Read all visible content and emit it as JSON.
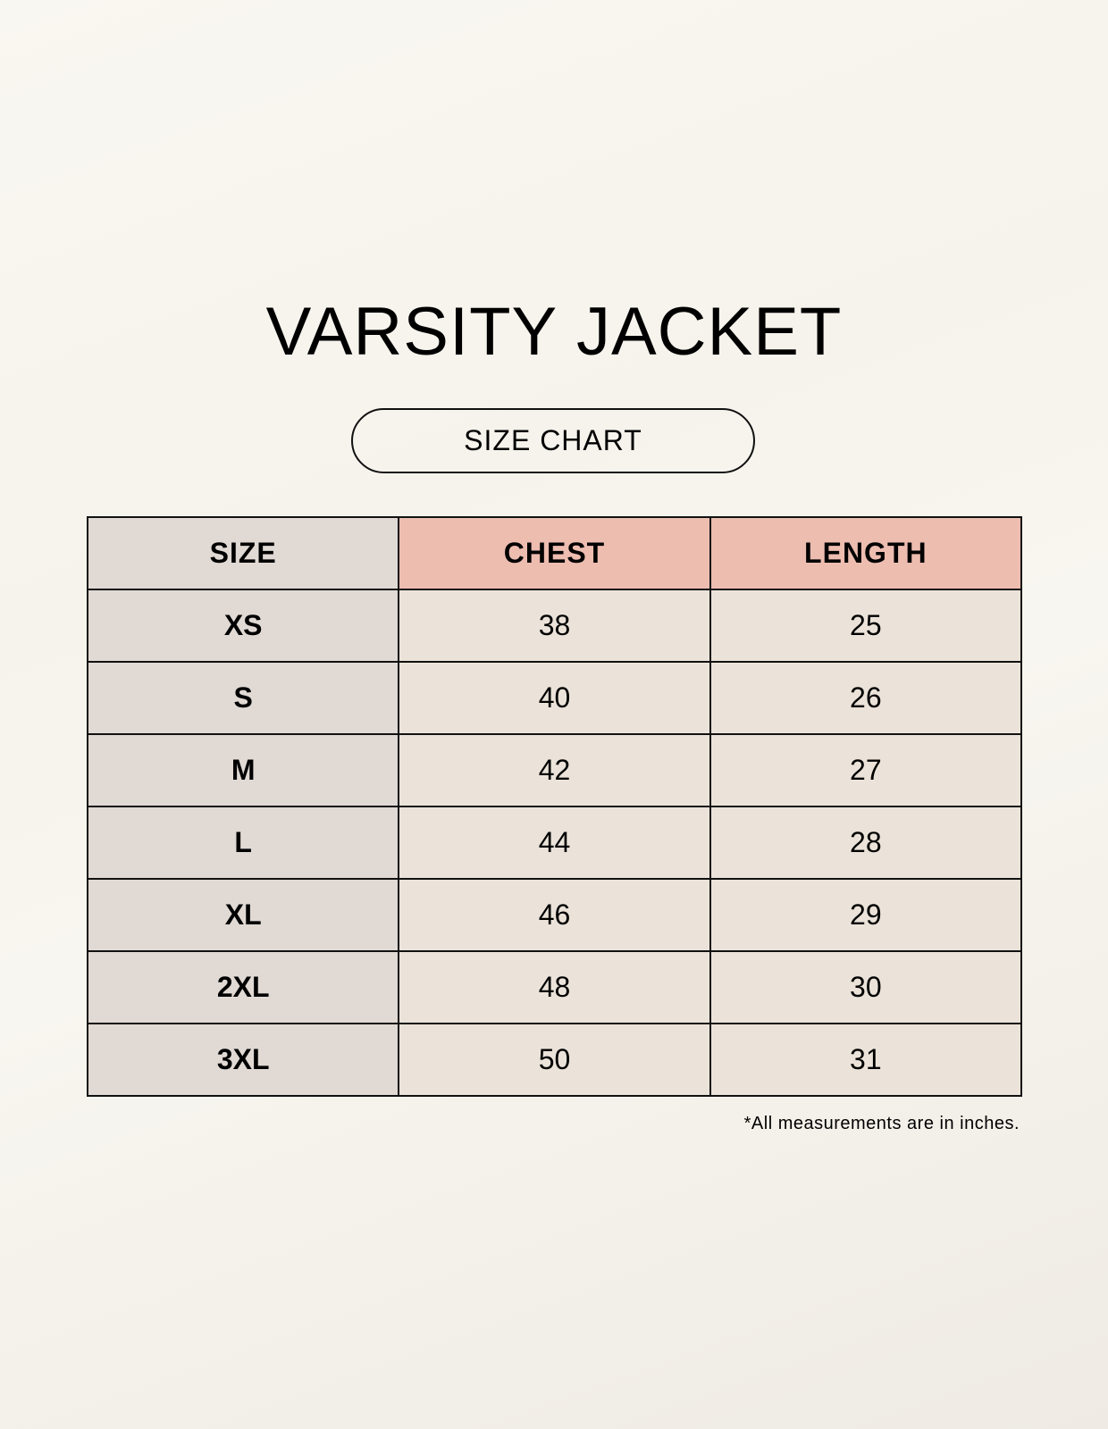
{
  "title": "VARSITY JACKET",
  "subtitle": "SIZE CHART",
  "table": {
    "headers": [
      "SIZE",
      "CHEST",
      "LENGTH"
    ],
    "rows": [
      [
        "XS",
        "38",
        "25"
      ],
      [
        "S",
        "40",
        "26"
      ],
      [
        "M",
        "42",
        "27"
      ],
      [
        "L",
        "44",
        "28"
      ],
      [
        "XL",
        "46",
        "29"
      ],
      [
        "2XL",
        "48",
        "30"
      ],
      [
        "3XL",
        "50",
        "31"
      ]
    ]
  },
  "footnote": "*All measurements are in inches.",
  "colors": {
    "size_column": "#e0d9d4",
    "measure_header": "#edbdb0",
    "measure_cells": "#ebe3d9"
  }
}
